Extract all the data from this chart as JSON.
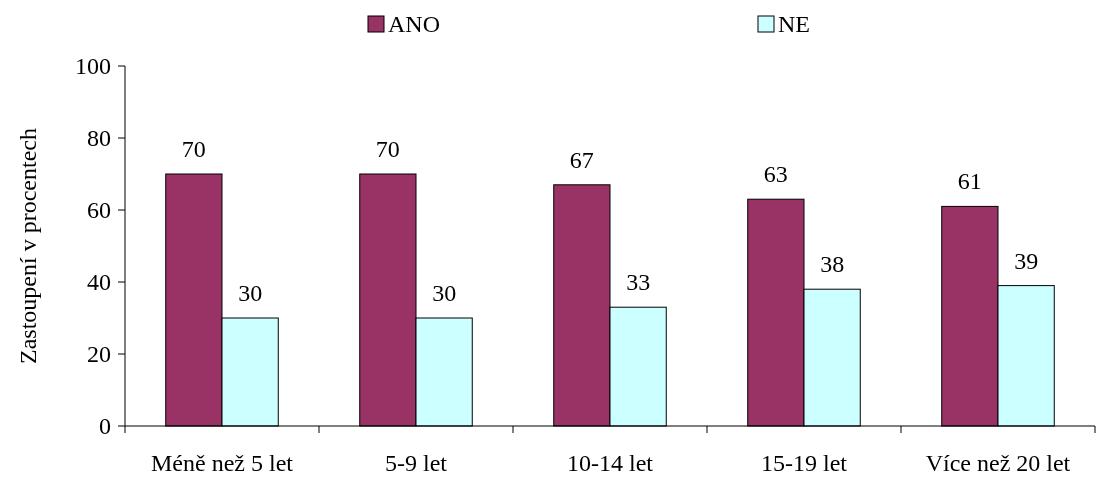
{
  "chart_data": {
    "type": "bar",
    "ylabel": "Zastoupení v procentech",
    "categories": [
      "Méně než 5 let",
      "5-9 let",
      "10-14 let",
      "15-19 let",
      "Více než 20 let"
    ],
    "series": [
      {
        "name": "ANO",
        "color": "#993366",
        "values": [
          70,
          70,
          67,
          63,
          61
        ]
      },
      {
        "name": "NE",
        "color": "#ccffff",
        "values": [
          30,
          30,
          33,
          38,
          39
        ]
      }
    ],
    "ylim": [
      0,
      100
    ],
    "yticks": [
      0,
      20,
      40,
      60,
      80,
      100
    ],
    "data_labels": true,
    "legend": "top",
    "grid": false
  }
}
